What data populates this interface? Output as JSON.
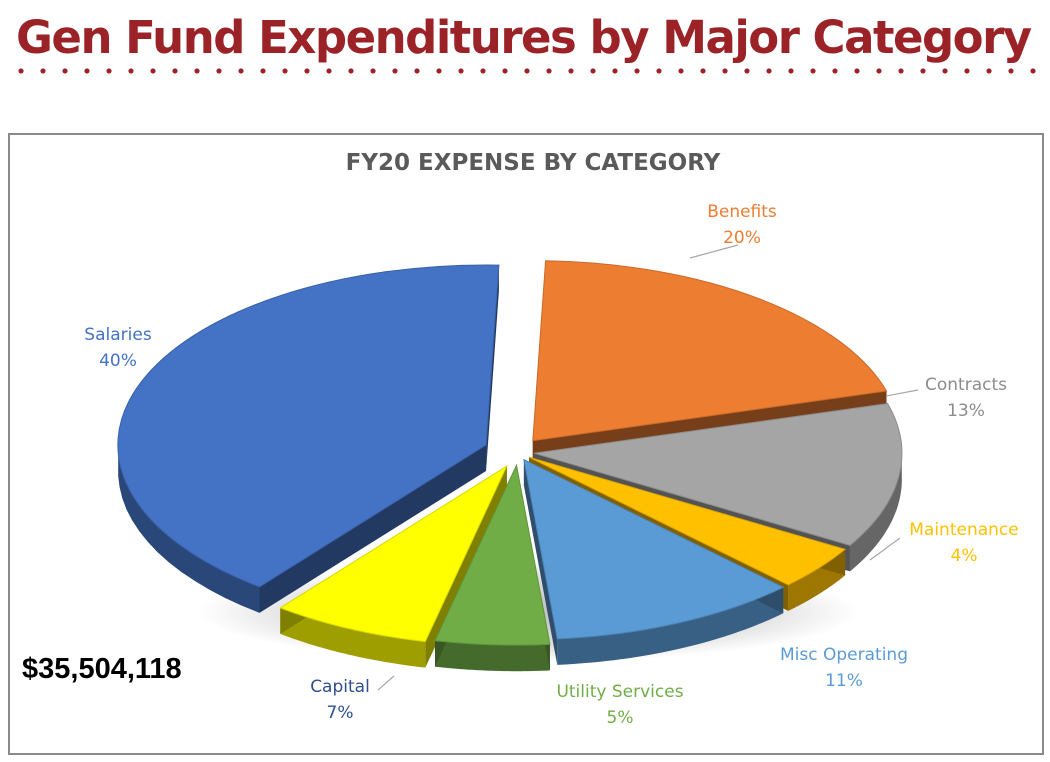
{
  "page": {
    "title": "Gen Fund Expenditures by Major Category",
    "total_amount": "$35,504,118"
  },
  "chart_data": {
    "type": "pie",
    "title": "FY20 EXPENSE BY CATEGORY",
    "three_d": true,
    "exploded": true,
    "slices": [
      {
        "label": "Salaries",
        "value": 40,
        "value_label": "40%",
        "color": "#4472c4"
      },
      {
        "label": "Benefits",
        "value": 20,
        "value_label": "20%",
        "color": "#ed7d31"
      },
      {
        "label": "Contracts",
        "value": 13,
        "value_label": "13%",
        "color": "#a5a5a5"
      },
      {
        "label": "Maintenance",
        "value": 4,
        "value_label": "4%",
        "color": "#ffc000"
      },
      {
        "label": "Misc Operating",
        "value": 11,
        "value_label": "11%",
        "color": "#5b9bd5"
      },
      {
        "label": "Utility Services",
        "value": 5,
        "value_label": "5%",
        "color": "#70ad47"
      },
      {
        "label": "Capital",
        "value": 7,
        "value_label": "7%",
        "color": "#ffff00"
      }
    ],
    "label_colors": {
      "Salaries": "#4472c4",
      "Benefits": "#ed7d31",
      "Contracts": "#8c8c8c",
      "Maintenance": "#ffc000",
      "Misc Operating": "#5b9bd5",
      "Utility Services": "#70ad47",
      "Capital": "#2f4f8f"
    }
  }
}
